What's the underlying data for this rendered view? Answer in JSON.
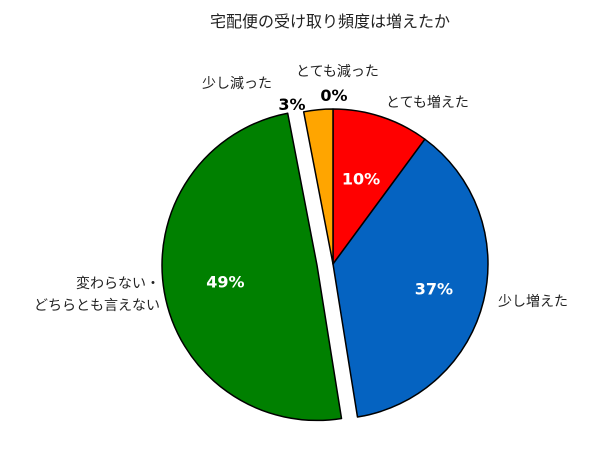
{
  "chart_data": {
    "type": "pie",
    "title": "宅配便の受け取り頻度は増えたか",
    "start_angle_deg": 0,
    "direction": "clockwise",
    "legend": "none",
    "slices": [
      {
        "label": "とても増えた",
        "value": 10,
        "value_label": "10%",
        "color": "#ff0000",
        "value_label_color": "#ffffff",
        "exploded": false
      },
      {
        "label": "少し増えた",
        "value": 37,
        "value_label": "37%",
        "color": "#0563c1",
        "value_label_color": "#ffffff",
        "exploded": false
      },
      {
        "label": "変わらない・どちらとも言えない",
        "label_lines": [
          "変わらない・",
          "どちらとも言えない"
        ],
        "value": 49,
        "value_label": "49%",
        "color": "#008000",
        "value_label_color": "#ffffff",
        "exploded": true
      },
      {
        "label": "少し減った",
        "value": 3,
        "value_label": "3%",
        "color": "#ffa500",
        "value_label_color": "#000000",
        "exploded": false
      },
      {
        "label": "とても減った",
        "value": 0,
        "value_label": "0%",
        "color": "#7f7f7f",
        "value_label_color": "#000000",
        "exploded": false
      }
    ]
  }
}
